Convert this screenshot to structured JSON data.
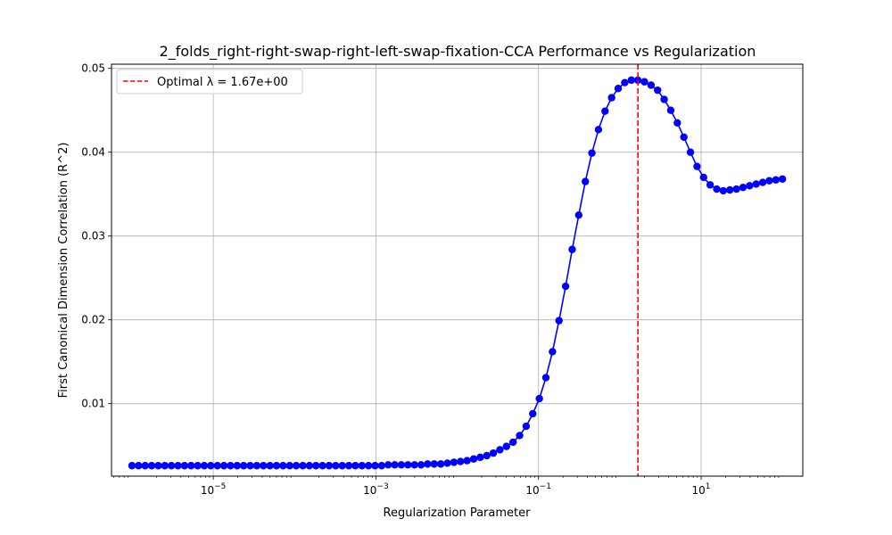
{
  "chart_data": {
    "type": "line",
    "title": "2_folds_right-right-swap-right-left-swap-fixation-CCA Performance vs Regularization",
    "xlabel": "Regularization Parameter",
    "ylabel": "First Canonical Dimension Correlation (R^2)",
    "x_scale": "log",
    "x_range": [
      5.6e-07,
      178.0
    ],
    "y_range": [
      0.00135,
      0.0505
    ],
    "x_ticks": [
      {
        "value": 1e-05,
        "base": "10",
        "exp": "−5"
      },
      {
        "value": 0.001,
        "base": "10",
        "exp": "−3"
      },
      {
        "value": 0.1,
        "base": "10",
        "exp": "−1"
      },
      {
        "value": 10,
        "base": "10",
        "exp": "1"
      }
    ],
    "y_ticks": [
      {
        "value": 0.01,
        "label": "0.01"
      },
      {
        "value": 0.02,
        "label": "0.02"
      },
      {
        "value": 0.03,
        "label": "0.03"
      },
      {
        "value": 0.04,
        "label": "0.04"
      },
      {
        "value": 0.05,
        "label": "0.05"
      }
    ],
    "grid": true,
    "legend_position": "top-left",
    "series": [
      {
        "color": "#0000ff",
        "marker": "circle",
        "x_log10_start": -6,
        "x_log10_end": 2,
        "values": [
          0.0026,
          0.0026,
          0.0026,
          0.0026,
          0.0026,
          0.0026,
          0.0026,
          0.0026,
          0.0026,
          0.0026,
          0.0026,
          0.0026,
          0.0026,
          0.0026,
          0.0026,
          0.0026,
          0.0026,
          0.0026,
          0.0026,
          0.0026,
          0.0026,
          0.0026,
          0.0026,
          0.0026,
          0.0026,
          0.0026,
          0.0026,
          0.0026,
          0.0026,
          0.0026,
          0.0026,
          0.0026,
          0.0026,
          0.0026,
          0.0026,
          0.0026,
          0.0026,
          0.0026,
          0.0026,
          0.0027,
          0.0027,
          0.0027,
          0.0027,
          0.0027,
          0.0027,
          0.0028,
          0.0028,
          0.0028,
          0.0029,
          0.003,
          0.0031,
          0.0032,
          0.0034,
          0.0036,
          0.0038,
          0.0041,
          0.0045,
          0.0049,
          0.0054,
          0.0062,
          0.0073,
          0.0088,
          0.0106,
          0.0131,
          0.0162,
          0.0199,
          0.024,
          0.0284,
          0.0325,
          0.0365,
          0.0399,
          0.0427,
          0.0449,
          0.0465,
          0.0476,
          0.0483,
          0.0486,
          0.0486,
          0.0484,
          0.048,
          0.0474,
          0.0463,
          0.045,
          0.0435,
          0.0418,
          0.04,
          0.0383,
          0.037,
          0.0361,
          0.0356,
          0.0354,
          0.0355,
          0.0356,
          0.0358,
          0.036,
          0.0362,
          0.0364,
          0.0366,
          0.0367,
          0.0368
        ]
      }
    ],
    "reference_line": {
      "orientation": "vertical",
      "x": 1.67,
      "color": "#ff0000",
      "style": "dashed",
      "legend_label": "Optimal λ = 1.67e+00"
    }
  }
}
